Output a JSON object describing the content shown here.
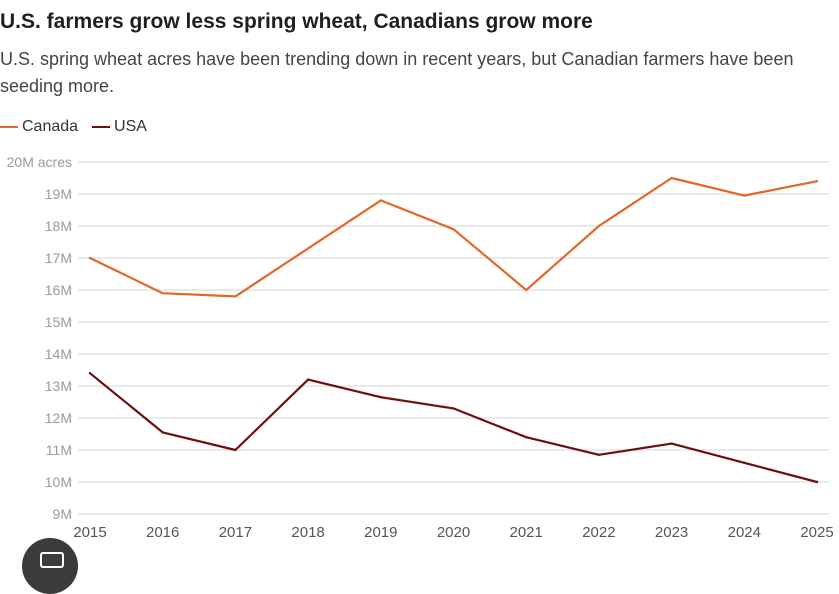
{
  "header": {
    "title": "U.S. farmers grow less spring wheat, Canadians grow more",
    "subtitle": "U.S. spring wheat acres have been trending down in recent years, but Canadian farmers have been seeding more."
  },
  "legend": [
    {
      "label": "Canada",
      "color": "#e0692a"
    },
    {
      "label": "USA",
      "color": "#6e0f0f"
    }
  ],
  "chart_data": {
    "type": "line",
    "title": "U.S. farmers grow less spring wheat, Canadians grow more",
    "xlabel": "",
    "ylabel": "",
    "x": [
      "2015",
      "2016",
      "2017",
      "2018",
      "2019",
      "2020",
      "2021",
      "2022",
      "2023",
      "2024",
      "2025"
    ],
    "y_ticks": [
      {
        "value": 9,
        "label": "9M"
      },
      {
        "value": 10,
        "label": "10M"
      },
      {
        "value": 11,
        "label": "11M"
      },
      {
        "value": 12,
        "label": "12M"
      },
      {
        "value": 13,
        "label": "13M"
      },
      {
        "value": 14,
        "label": "14M"
      },
      {
        "value": 15,
        "label": "15M"
      },
      {
        "value": 16,
        "label": "16M"
      },
      {
        "value": 17,
        "label": "17M"
      },
      {
        "value": 18,
        "label": "18M"
      },
      {
        "value": 19,
        "label": "19M"
      },
      {
        "value": 20,
        "label": "20M acres"
      }
    ],
    "ylim": [
      9,
      20
    ],
    "grid": true,
    "legend_position": "top-left",
    "series": [
      {
        "name": "Canada",
        "color": "#e0692a",
        "values": [
          17.0,
          15.9,
          15.8,
          17.3,
          18.8,
          17.9,
          16.0,
          18.0,
          19.5,
          18.95,
          19.4
        ]
      },
      {
        "name": "USA",
        "color": "#6e0f0f",
        "values": [
          13.4,
          11.55,
          11.0,
          13.2,
          12.65,
          12.3,
          11.4,
          10.85,
          11.2,
          10.6,
          10.0
        ]
      }
    ]
  },
  "ui": {
    "camera_icon": "camera-icon"
  }
}
